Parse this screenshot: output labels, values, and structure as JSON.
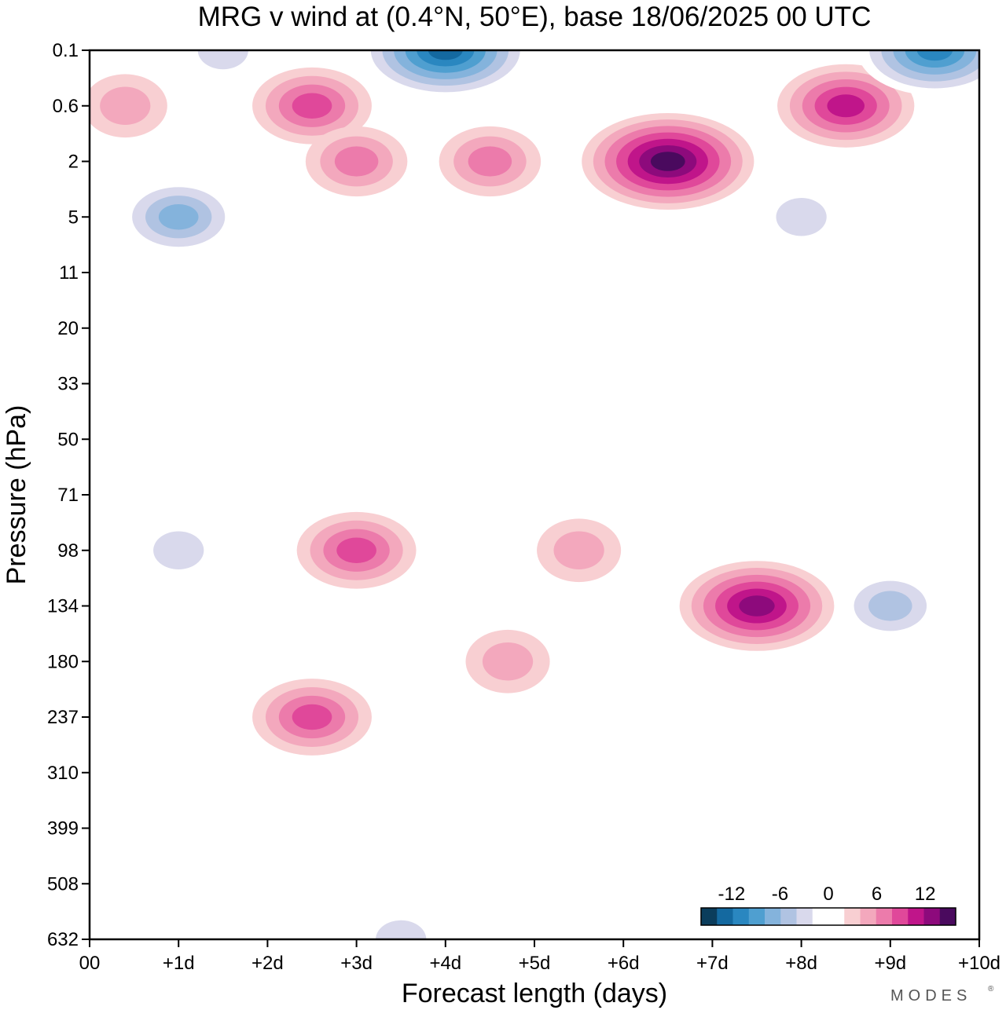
{
  "chart_data": {
    "type": "heatmap",
    "title": "MRG v wind at (0.4°N, 50°E),  base 18/06/2025  00 UTC",
    "xlabel": "Forecast length (days)",
    "ylabel": "Pressure (hPa)",
    "x_ticks": [
      "00",
      "+1d",
      "+2d",
      "+3d",
      "+4d",
      "+5d",
      "+6d",
      "+7d",
      "+8d",
      "+9d",
      "+10d"
    ],
    "y_ticks": [
      "0.1",
      "0.6",
      "2",
      "5",
      "11",
      "20",
      "33",
      "50",
      "71",
      "98",
      "134",
      "180",
      "237",
      "310",
      "399",
      "508",
      "632"
    ],
    "xlim": [
      0,
      10
    ],
    "colorbar": {
      "tick_labels": [
        "-12",
        "-6",
        "0",
        "6",
        "12"
      ],
      "colors": [
        "#0b3d5c",
        "#1469a0",
        "#2a87c0",
        "#4f9fd0",
        "#84b3dc",
        "#b0c3e2",
        "#d9d9ec",
        "#ffffff",
        "#ffffff",
        "#f8cfd2",
        "#f3a8bd",
        "#ec7bab",
        "#e0489a",
        "#c0158a",
        "#8d0a7c",
        "#4a0a5e"
      ]
    },
    "features": [
      {
        "x": 0.4,
        "p": "0.6",
        "value": 5
      },
      {
        "x": 1.5,
        "p": "0.1",
        "value": -5
      },
      {
        "x": 2.5,
        "p": "0.6",
        "value": 9
      },
      {
        "x": 3.0,
        "p": "2",
        "value": 6
      },
      {
        "x": 4.0,
        "p": "0.1",
        "value": -15
      },
      {
        "x": 4.5,
        "p": "2",
        "value": 7
      },
      {
        "x": 6.5,
        "p": "2",
        "value": 14
      },
      {
        "x": 8.5,
        "p": "0.6",
        "value": 11
      },
      {
        "x": 9.5,
        "p": "0.1",
        "value": -12
      },
      {
        "x": 1.0,
        "p": "5",
        "value": -9
      },
      {
        "x": 8.0,
        "p": "5",
        "value": -5
      },
      {
        "x": 3.0,
        "p": "98",
        "value": 8
      },
      {
        "x": 5.5,
        "p": "98",
        "value": 5
      },
      {
        "x": 4.7,
        "p": "180",
        "value": 4
      },
      {
        "x": 7.5,
        "p": "134",
        "value": 13
      },
      {
        "x": 2.5,
        "p": "237",
        "value": 8
      },
      {
        "x": 9.0,
        "p": "134",
        "value": -6
      },
      {
        "x": 3.5,
        "p": "632",
        "value": -5
      },
      {
        "x": 1.0,
        "p": "98",
        "value": -4
      }
    ]
  },
  "branding": {
    "logo_text": "MODES",
    "logo_mark": "®"
  }
}
